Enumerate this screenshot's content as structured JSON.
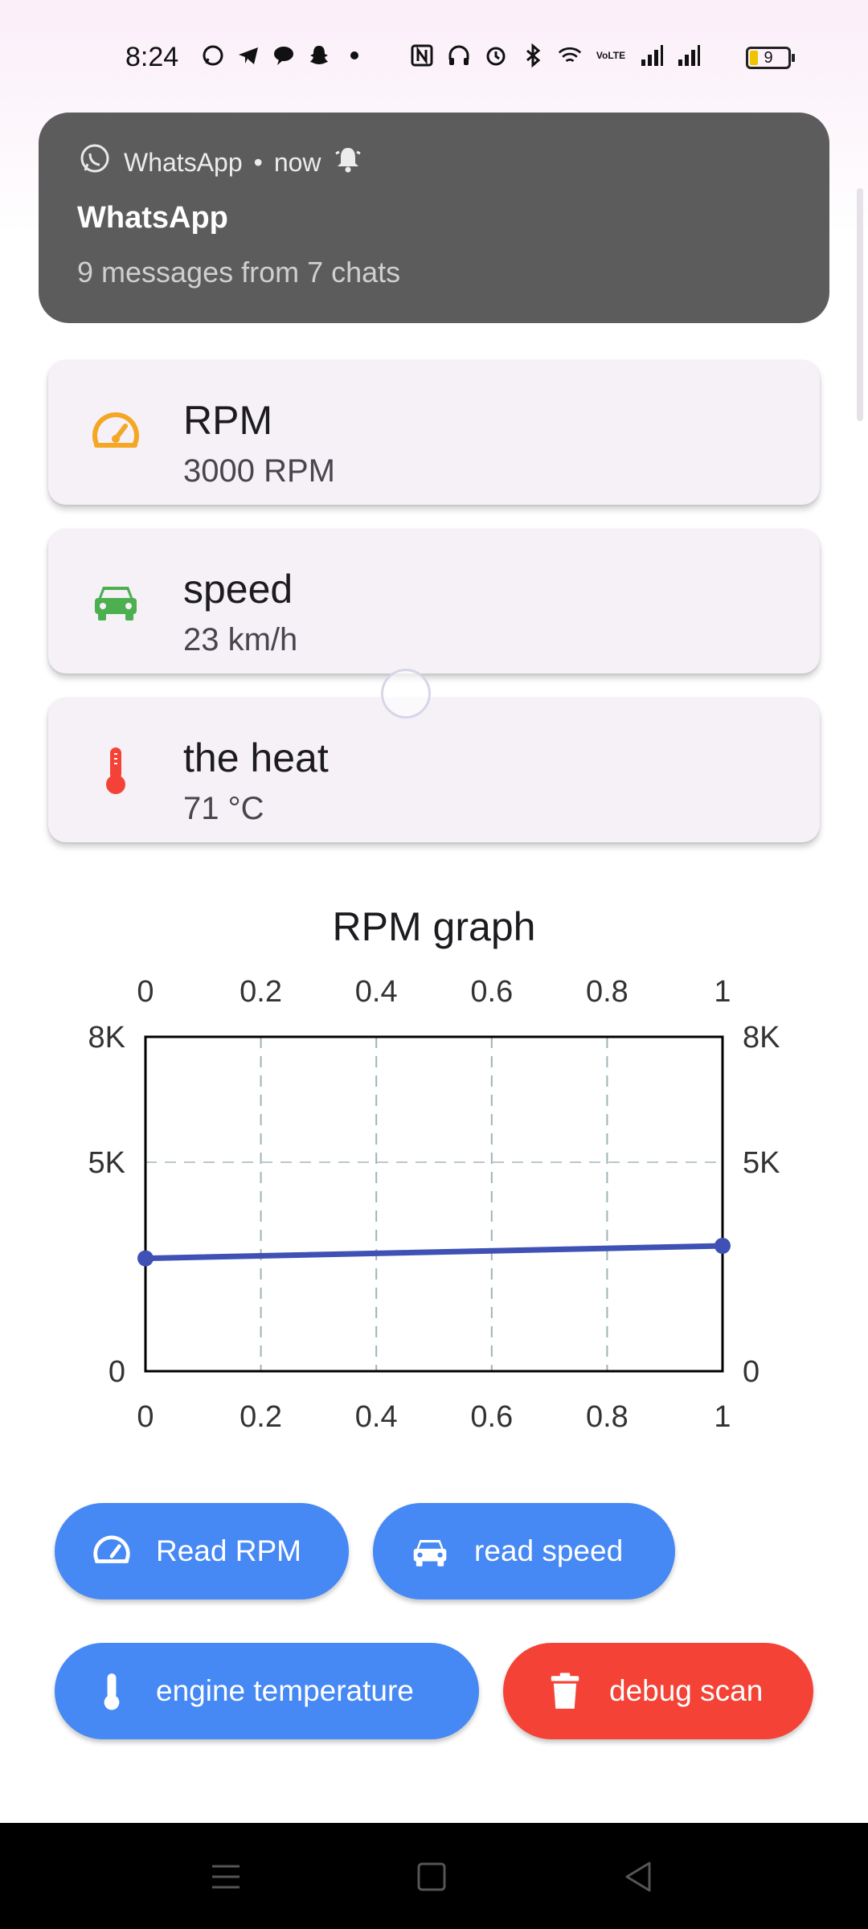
{
  "status_bar": {
    "time": "8:24",
    "battery": "9",
    "network_label": "VoLTE"
  },
  "notification": {
    "app": "WhatsApp",
    "when": "now",
    "title": "WhatsApp",
    "body": "9 messages from 7 chats"
  },
  "cards": [
    {
      "title": "RPM",
      "value": "3000 RPM",
      "icon": "speedometer-icon",
      "icon_color": "#f5a623"
    },
    {
      "title": "speed",
      "value": "23 km/h",
      "icon": "car-icon",
      "icon_color": "#4caf50"
    },
    {
      "title": "the heat",
      "value": "71 °C",
      "icon": "thermometer-icon",
      "icon_color": "#f44336"
    }
  ],
  "chart_data": {
    "type": "line",
    "title": "RPM graph",
    "x": [
      0,
      1
    ],
    "values": [
      2700,
      3000
    ],
    "xlim": [
      0,
      1
    ],
    "ylim": [
      0,
      8000
    ],
    "x_ticks": [
      "0",
      "0.2",
      "0.4",
      "0.6",
      "0.8",
      "1"
    ],
    "x_tick_values": [
      0,
      0.2,
      0.4,
      0.6,
      0.8,
      1
    ],
    "y_ticks": [
      "0",
      "5K",
      "8K"
    ],
    "y_tick_values": [
      0,
      5000,
      8000
    ],
    "grid": "dashed",
    "line_color": "#3f51b5"
  },
  "buttons": {
    "read_rpm": "Read RPM",
    "read_speed": "read speed",
    "engine_temperature": "engine temperature",
    "debug_scan": "debug scan"
  },
  "colors": {
    "primary": "#4688f4",
    "danger": "#f44336",
    "card_bg": "#f5f1f7"
  }
}
